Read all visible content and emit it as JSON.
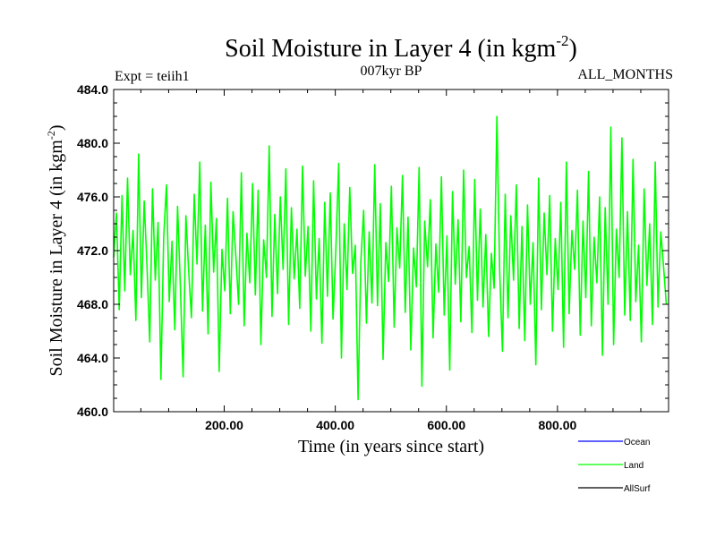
{
  "chart_data": {
    "type": "line",
    "title": "Soil Moisture in Layer 4 (in kgm",
    "title_superscript": "-2",
    "title_suffix": ")",
    "subtitle_left": "Expt = teiih1",
    "subtitle_center": "007kyr BP",
    "subtitle_right": "ALL_MONTHS",
    "xlabel": "Time (in years since start)",
    "ylabel": "Soil Moisture in Layer 4 (in kgm",
    "ylabel_superscript": "-2",
    "ylabel_suffix": ")",
    "xlim": [
      1,
      1000
    ],
    "ylim": [
      460,
      484
    ],
    "x_ticks": [
      200,
      400,
      600,
      800
    ],
    "x_tick_labels": [
      "200.00",
      "400.00",
      "600.00",
      "800.00"
    ],
    "y_ticks": [
      460,
      464,
      468,
      472,
      476,
      480,
      484
    ],
    "y_tick_labels": [
      "460.0",
      "464.0",
      "468.0",
      "472.0",
      "476.0",
      "480.0",
      "484.0"
    ],
    "grid": false,
    "legend_position": "bottom-right",
    "series": [
      {
        "name": "Ocean",
        "color": "#0000ff",
        "values": []
      },
      {
        "name": "Land",
        "color": "#00ff00",
        "x_start": 1,
        "x_step": 5,
        "values": [
          471.5,
          474.8,
          467.6,
          476.1,
          469.0,
          477.4,
          470.2,
          473.5,
          466.8,
          479.2,
          468.5,
          475.7,
          470.9,
          465.2,
          476.6,
          469.8,
          474.1,
          462.4,
          473.0,
          476.9,
          468.2,
          472.7,
          466.1,
          475.3,
          469.4,
          462.6,
          474.6,
          470.5,
          467.0,
          476.2,
          471.0,
          478.6,
          467.5,
          473.9,
          465.8,
          477.1,
          470.4,
          474.4,
          463.0,
          472.1,
          469.0,
          475.9,
          467.3,
          474.9,
          471.6,
          468.0,
          477.8,
          466.4,
          473.3,
          469.6,
          477.0,
          468.7,
          476.5,
          465.0,
          472.8,
          470.0,
          479.8,
          467.1,
          474.7,
          468.8,
          476.0,
          470.6,
          478.1,
          466.5,
          475.2,
          469.9,
          473.6,
          467.7,
          478.3,
          470.1,
          473.8,
          466.0,
          477.2,
          468.4,
          472.9,
          465.1,
          475.6,
          468.6,
          476.3,
          466.9,
          472.0,
          478.5,
          464.0,
          474.0,
          469.1,
          476.7,
          470.3,
          472.4,
          460.9,
          471.2,
          475.0,
          466.6,
          473.4,
          468.1,
          478.4,
          467.9,
          475.5,
          463.9,
          472.6,
          469.7,
          476.8,
          466.3,
          473.7,
          470.7,
          477.6,
          467.4,
          474.5,
          464.6,
          472.2,
          469.3,
          478.2,
          461.9,
          474.2,
          470.8,
          475.8,
          465.5,
          472.5,
          468.9,
          477.5,
          467.2,
          473.1,
          463.1,
          476.4,
          469.5,
          474.3,
          466.7,
          478.0,
          470.0,
          472.3,
          465.9,
          477.3,
          468.3,
          475.1,
          467.8,
          473.2,
          465.6,
          471.8,
          469.2,
          482.0,
          470.5,
          464.5,
          476.2,
          467.0,
          474.6,
          469.8,
          476.9,
          466.2,
          473.8,
          465.3,
          475.4,
          468.0,
          472.6,
          463.5,
          477.4,
          467.6,
          474.8,
          470.2,
          476.1,
          466.0,
          472.9,
          469.1,
          475.6,
          464.8,
          478.6,
          467.3,
          473.5,
          470.6,
          476.5,
          465.7,
          474.2,
          468.5,
          477.9,
          466.4,
          473.0,
          469.6,
          476.0,
          464.2,
          475.2,
          468.0,
          481.2,
          465.0,
          473.6,
          470.0,
          480.4,
          467.2,
          474.9,
          466.8,
          478.8,
          468.2,
          472.4,
          465.2,
          476.6,
          469.4,
          474.0,
          466.5,
          478.6,
          467.8,
          473.4,
          470.8,
          468.0
        ]
      },
      {
        "name": "AllSurf",
        "color": "#000000",
        "values": []
      }
    ]
  }
}
